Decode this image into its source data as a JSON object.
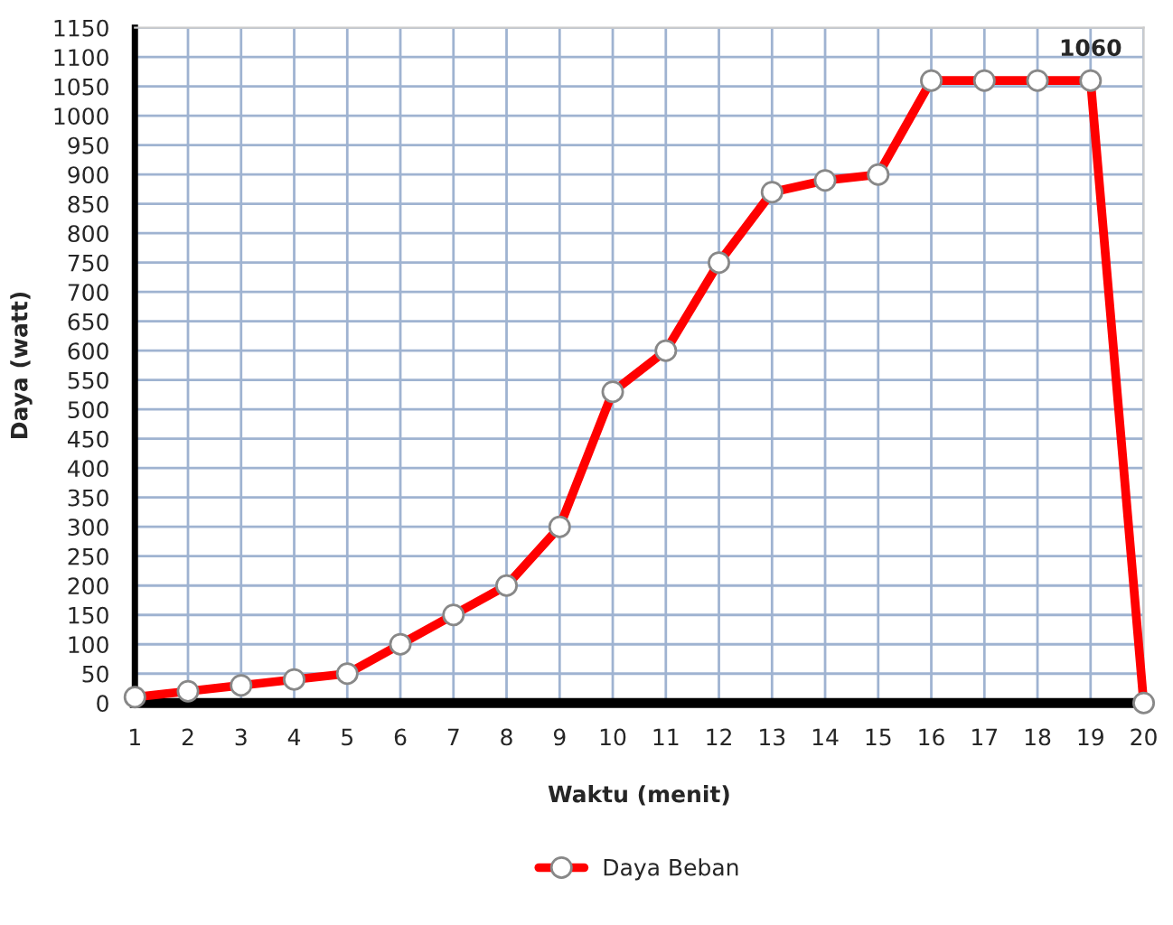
{
  "chart_data": {
    "type": "line",
    "xlabel": "Waktu (menit)",
    "ylabel": "Daya (watt)",
    "x": [
      1,
      2,
      3,
      4,
      5,
      6,
      7,
      8,
      9,
      10,
      11,
      12,
      13,
      14,
      15,
      16,
      17,
      18,
      19,
      20
    ],
    "series": [
      {
        "name": "Daya Beban",
        "color": "#ff0000",
        "values": [
          10,
          20,
          30,
          40,
          50,
          100,
          150,
          200,
          300,
          530,
          600,
          750,
          870,
          890,
          900,
          1060,
          1060,
          1060,
          1060,
          0
        ]
      }
    ],
    "xlim": [
      1,
      20
    ],
    "xticks": [
      1,
      2,
      3,
      4,
      5,
      6,
      7,
      8,
      9,
      10,
      11,
      12,
      13,
      14,
      15,
      16,
      17,
      18,
      19,
      20
    ],
    "ylim": [
      0,
      1150
    ],
    "yticks": [
      0,
      50,
      100,
      150,
      200,
      250,
      300,
      350,
      400,
      450,
      500,
      550,
      600,
      650,
      700,
      750,
      800,
      850,
      900,
      950,
      1000,
      1050,
      1100,
      1150
    ],
    "annotations": [
      {
        "text": "1060",
        "x": 19,
        "y": 1060
      }
    ],
    "grid": true,
    "legend": "bottom",
    "marker": "circle",
    "line_style": "solid"
  }
}
